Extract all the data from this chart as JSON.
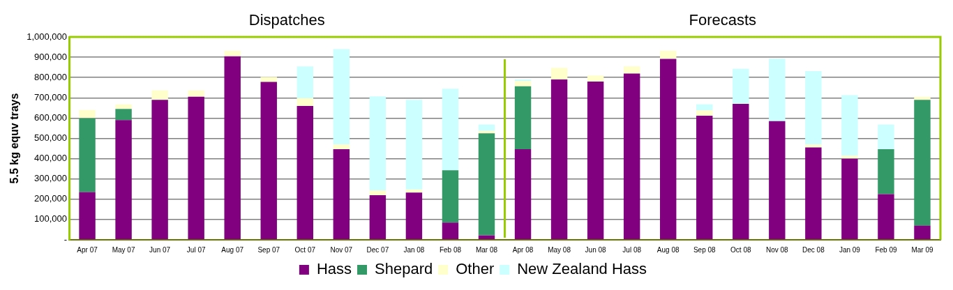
{
  "chart_data": {
    "type": "bar",
    "stacked": true,
    "ylabel": "5.5 kg equv trays",
    "annotations": [
      "Dispatches",
      "Forecasts"
    ],
    "categories": [
      "Apr 07",
      "May 07",
      "Jun 07",
      "Jul 07",
      "Aug 07",
      "Sep 07",
      "Oct 07",
      "Nov 07",
      "Dec 07",
      "Jan 08",
      "Feb 08",
      "Mar 08",
      "Apr 08",
      "May 08",
      "Jun 08",
      "Jul 08",
      "Aug 08",
      "Sep 08",
      "Oct 08",
      "Nov 08",
      "Dec 08",
      "Jan 09",
      "Feb 09",
      "Mar 09"
    ],
    "series": [
      {
        "name": "Hass",
        "color": "#800080",
        "values": [
          235000,
          590000,
          690000,
          705000,
          905000,
          778000,
          660000,
          447000,
          220000,
          233000,
          85000,
          22000,
          447000,
          790000,
          780000,
          820000,
          892000,
          612000,
          670000,
          585000,
          455000,
          400000,
          225000,
          70000
        ]
      },
      {
        "name": "Shepard",
        "color": "#339966",
        "values": [
          365000,
          55000,
          0,
          0,
          0,
          0,
          0,
          0,
          0,
          0,
          258000,
          503000,
          310000,
          0,
          0,
          0,
          0,
          0,
          0,
          0,
          0,
          0,
          222000,
          620000
        ]
      },
      {
        "name": "Other",
        "color": "#ffffcc",
        "values": [
          40000,
          23000,
          47000,
          32000,
          27000,
          25000,
          38000,
          23000,
          23000,
          15000,
          null,
          12000,
          25000,
          58000,
          30000,
          35000,
          40000,
          26000,
          null,
          0,
          15000,
          15000,
          0,
          15000
        ]
      },
      {
        "name": "New Zealand Hass",
        "color": "#ccffff",
        "values": [
          0,
          0,
          0,
          0,
          0,
          0,
          157000,
          470000,
          464000,
          442000,
          402000,
          31000,
          8000,
          0,
          0,
          0,
          0,
          30000,
          173000,
          308000,
          362000,
          298000,
          121000,
          0
        ]
      }
    ],
    "ylim": [
      0,
      1000000
    ],
    "yticks": [
      {
        "value": 0,
        "label": "-"
      },
      {
        "value": 100000,
        "label": "100,000"
      },
      {
        "value": 200000,
        "label": "200,000"
      },
      {
        "value": 300000,
        "label": "300,000"
      },
      {
        "value": 400000,
        "label": "400,000"
      },
      {
        "value": 500000,
        "label": "500,000"
      },
      {
        "value": 600000,
        "label": "600,000"
      },
      {
        "value": 700000,
        "label": "700,000"
      },
      {
        "value": 800000,
        "label": "800,000"
      },
      {
        "value": 900000,
        "label": "900,000"
      },
      {
        "value": 1000000,
        "label": "1,000,000"
      }
    ],
    "grid": "y",
    "legend": "bottom"
  }
}
